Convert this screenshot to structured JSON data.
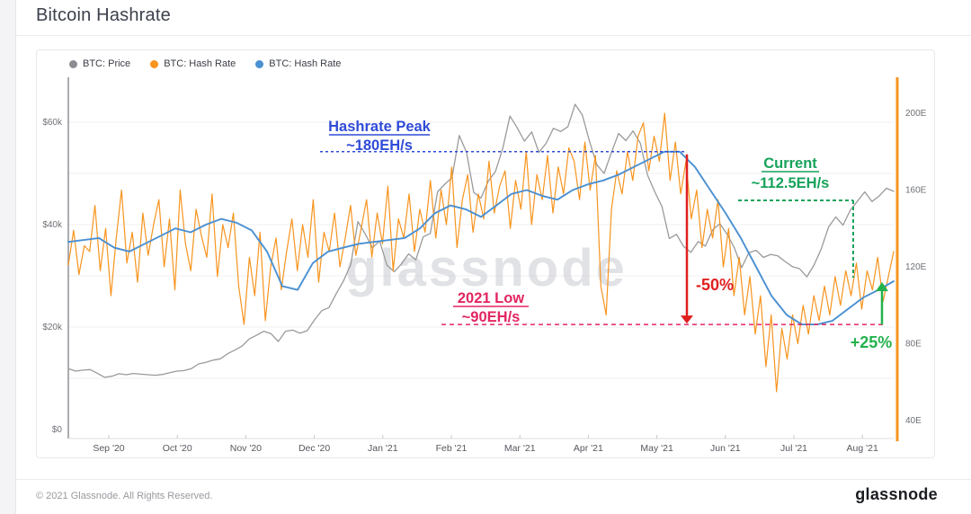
{
  "page": {
    "title": "Bitcoin Hashrate"
  },
  "legend": [
    {
      "label": "BTC: Price",
      "color": "#8b8d92"
    },
    {
      "label": "BTC: Hash Rate",
      "color": "#f7941e"
    },
    {
      "label": "BTC: Hash Rate",
      "color": "#4a90d2"
    }
  ],
  "watermark": "glassnode",
  "footer": {
    "copyright": "© 2021 Glassnode. All Rights Reserved.",
    "brand": "glassnode"
  },
  "chart_data": {
    "type": "line",
    "title": "Bitcoin Hashrate",
    "x_labels": [
      "Sep '20",
      "Oct '20",
      "Nov '20",
      "Dec '20",
      "Jan '21",
      "Feb '21",
      "Mar '21",
      "Apr '21",
      "May '21",
      "Jun '21",
      "Jul '21",
      "Aug '21"
    ],
    "axes": {
      "left": {
        "unit": "USD",
        "tick_labels": [
          "$0",
          "$20k",
          "$40k",
          "$60k"
        ],
        "tick_values": [
          0,
          20,
          40,
          60
        ],
        "range_k_usd": [
          0,
          68
        ]
      },
      "right": {
        "unit": "EH/s",
        "tick_labels": [
          "40E",
          "80E",
          "120E",
          "160E",
          "200E"
        ],
        "tick_values": [
          40,
          80,
          120,
          160,
          200
        ],
        "range_eh": [
          40,
          218
        ]
      }
    },
    "grid": {
      "horizontal_step_k_usd": 10,
      "color": "#efeff2"
    },
    "series": [
      {
        "name": "BTC: Price",
        "axis": "left",
        "color": "#9a9a9a",
        "width": 1.3,
        "unit": "$k",
        "values": [
          11.9,
          11.4,
          11.6,
          11.7,
          11.0,
          10.2,
          10.4,
          10.9,
          10.7,
          10.95,
          10.8,
          10.7,
          10.6,
          10.75,
          11.1,
          11.4,
          11.5,
          11.9,
          12.8,
          13.1,
          13.55,
          13.8,
          14.8,
          15.5,
          16.3,
          17.7,
          18.4,
          19.2,
          18.7,
          17.2,
          19.2,
          19.4,
          18.8,
          19.3,
          21.4,
          23.2,
          23.8,
          26.5,
          29.0,
          32.2,
          40.6,
          38.2,
          35.5,
          36.8,
          32.1,
          30.8,
          32.3,
          34.3,
          33.1,
          37.6,
          38.3,
          46.4,
          47.9,
          49.2,
          57.4,
          54.1,
          46.3,
          45.2,
          48.5,
          50.4,
          54.9,
          61.2,
          58.9,
          56.3,
          58.1,
          54.1,
          55.9,
          58.8,
          58.2,
          59.1,
          63.5,
          61.4,
          56.2,
          51.7,
          50.0,
          54.0,
          57.8,
          56.4,
          58.3,
          55.9,
          49.7,
          46.4,
          43.5,
          37.3,
          38.1,
          35.7,
          34.6,
          36.7,
          35.8,
          39.0,
          40.2,
          38.1,
          35.5,
          31.6,
          34.5,
          35.0,
          33.6,
          34.2,
          33.9,
          32.8,
          31.8,
          31.4,
          29.8,
          32.1,
          35.3,
          39.5,
          41.5,
          39.9,
          42.8,
          44.6,
          46.4,
          44.5,
          45.6,
          47.1,
          46.5
        ]
      },
      {
        "name": "BTC: Hash Rate",
        "axis": "right",
        "color": "#f7941e",
        "width": 1.2,
        "unit": "EH/s",
        "values": [
          121,
          139,
          116,
          131,
          128,
          152,
          118,
          140,
          105,
          135,
          160,
          122,
          138,
          112,
          148,
          126,
          142,
          155,
          120,
          145,
          108,
          160,
          132,
          118,
          150,
          136,
          125,
          158,
          115,
          142,
          130,
          148,
          110,
          90,
          125,
          105,
          138,
          92,
          120,
          135,
          108,
          128,
          145,
          118,
          142,
          125,
          155,
          112,
          138,
          128,
          148,
          120,
          135,
          152,
          126,
          140,
          155,
          125,
          148,
          132,
          162,
          118,
          145,
          135,
          158,
          128,
          150,
          138,
          165,
          135,
          160,
          142,
          172,
          130,
          155,
          168,
          138,
          158,
          145,
          175,
          148,
          162,
          170,
          140,
          165,
          150,
          180,
          142,
          168,
          155,
          178,
          148,
          172,
          158,
          182,
          175,
          155,
          185,
          160,
          178,
          110,
          95,
          150,
          170,
          158,
          180,
          165,
          188,
          195,
          170,
          188,
          175,
          200,
          165,
          185,
          158,
          175,
          145,
          160,
          130,
          150,
          135,
          155,
          120,
          140,
          105,
          125,
          95,
          115,
          85,
          105,
          68,
          95,
          55,
          88,
          72,
          95,
          80,
          100,
          85,
          105,
          92,
          110,
          95,
          115,
          100,
          118,
          105,
          122,
          98,
          118,
          108,
          125,
          102,
          115,
          128
        ]
      },
      {
        "name": "BTC: Hash Rate (7d MA)",
        "axis": "right",
        "color": "#4a90d2",
        "width": 1.9,
        "unit": "EH/s",
        "values": [
          133,
          134,
          135,
          130,
          128,
          132,
          136,
          140,
          138,
          142,
          145,
          143,
          139,
          128,
          110,
          108,
          122,
          128,
          130,
          132,
          133,
          134,
          135,
          140,
          148,
          152,
          150,
          146,
          152,
          158,
          160,
          157,
          155,
          160,
          163,
          165,
          168,
          172,
          176,
          180,
          180,
          172,
          160,
          148,
          135,
          120,
          105,
          95,
          90,
          90,
          92,
          98,
          104,
          108,
          112.5
        ]
      }
    ],
    "annotations": {
      "peak": {
        "title": "Hashrate Peak",
        "value_label": "~180EH/s",
        "value_eh": 180,
        "color": "#2f4bd7",
        "line_style": "dotted"
      },
      "low": {
        "title": "2021 Low",
        "value_label": "~90EH/s",
        "value_eh": 90,
        "color": "#e22560",
        "line_style": "dashed"
      },
      "current": {
        "title": "Current",
        "value_label": "~112.5EH/s",
        "value_eh": 112.5,
        "color": "#17a35b",
        "line_style": "dashed"
      },
      "drawdown": {
        "label": "-50%",
        "color": "#e01f1f"
      },
      "recovery": {
        "label": "+25%",
        "color": "#23b24d"
      }
    }
  }
}
